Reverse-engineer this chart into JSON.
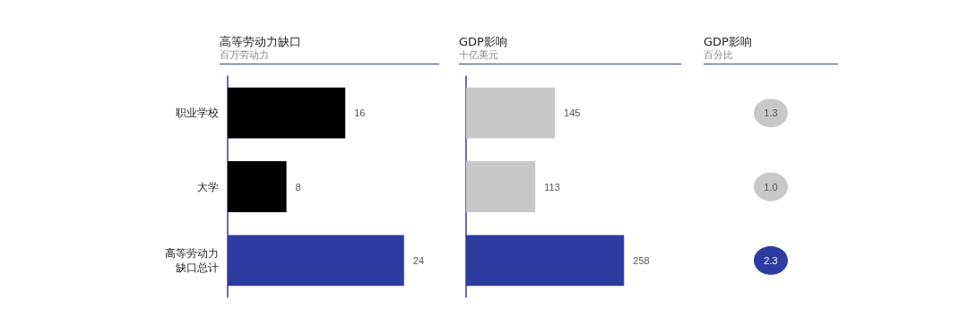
{
  "chart_data": [
    {
      "type": "bar",
      "orientation": "horizontal",
      "title": "高等劳动力缺口",
      "subtitle": "百万劳动力",
      "categories": [
        "职业学校",
        "大学",
        "高等劳动力缺口总计"
      ],
      "values": [
        16,
        8,
        24
      ],
      "colors": [
        "#000000",
        "#000000",
        "#2e3ba0"
      ],
      "data_labels": true,
      "tick_labels": "y"
    },
    {
      "type": "bar",
      "orientation": "horizontal",
      "title": "GDP影响",
      "subtitle": "十亿美元",
      "categories": [
        null,
        null,
        null
      ],
      "values": [
        145,
        113,
        258
      ],
      "colors": [
        "#c8c8c8",
        "#c8c8c8",
        "#2e3ba0"
      ],
      "data_labels": true,
      "tick_labels": false
    },
    {
      "type": "other",
      "title": "GDP影响",
      "subtitle": "百分比",
      "categories": [
        null,
        null,
        null
      ],
      "values": [
        1.3,
        1.0,
        2.3
      ],
      "colors": [
        "#c8c8c8",
        "#c8c8c8",
        "#2e3ba0"
      ],
      "value_labels": [
        "1.3",
        "1.0",
        "2.3"
      ]
    }
  ]
}
